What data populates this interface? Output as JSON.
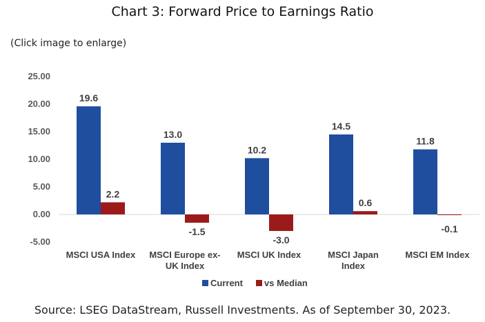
{
  "title": "Chart 3: Forward Price to Earnings Ratio",
  "note": "(Click image to enlarge)",
  "source": "Source: LSEG DataStream, Russell Investments. As of September 30, 2023.",
  "colors": {
    "current": "#1F4E9E",
    "vs_median": "#9B1B1B",
    "axis": "#d9d9d9"
  },
  "chart_data": {
    "type": "bar",
    "categories": [
      [
        "MSCI USA Index"
      ],
      [
        "MSCI Europe ex-",
        "UK Index"
      ],
      [
        "MSCI UK Index"
      ],
      [
        "MSCI Japan",
        "Index"
      ],
      [
        "MSCI EM Index"
      ]
    ],
    "series": [
      {
        "name": "Current",
        "values": [
          19.6,
          13.0,
          10.2,
          14.5,
          11.8
        ],
        "labels": [
          "19.6",
          "13.0",
          "10.2",
          "14.5",
          "11.8"
        ]
      },
      {
        "name": "vs Median",
        "values": [
          2.2,
          -1.5,
          -3.0,
          0.6,
          -0.1
        ],
        "labels": [
          "2.2",
          "-1.5",
          "-3.0",
          "0.6",
          "-0.1"
        ]
      }
    ],
    "yticks": [
      "25.00",
      "20.00",
      "15.00",
      "10.00",
      "5.00",
      "0.00",
      "-5.00"
    ],
    "ylim": [
      -5,
      25
    ],
    "legend_position": "bottom",
    "grid": false
  }
}
